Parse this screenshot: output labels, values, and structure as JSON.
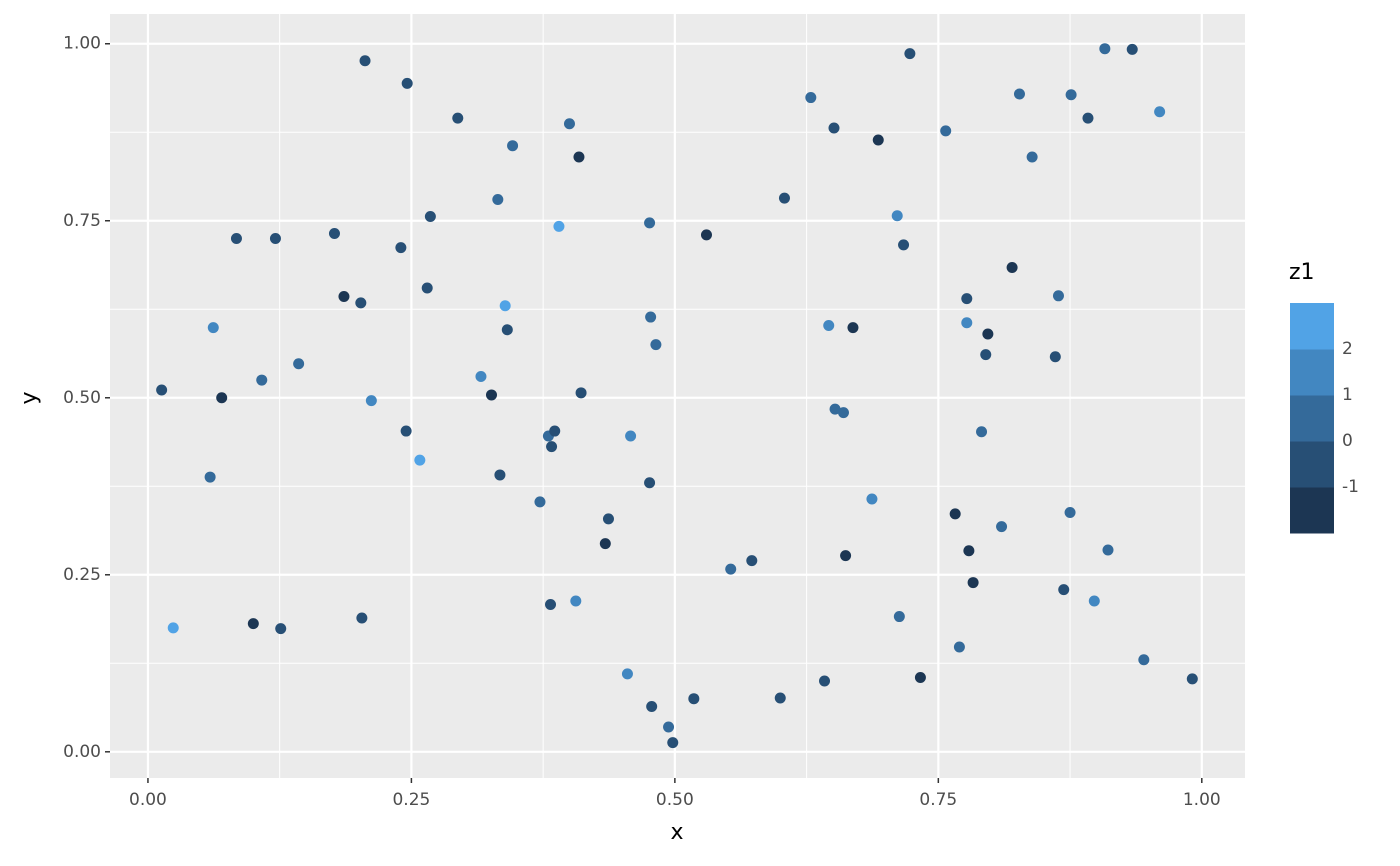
{
  "chart_data": {
    "type": "scatter",
    "x_label": "x",
    "y_label": "y",
    "xlim": [
      -0.036,
      1.041
    ],
    "ylim": [
      -0.037,
      1.042
    ],
    "xticks": [
      {
        "value": 0,
        "label": "0.00"
      },
      {
        "value": 0.25,
        "label": "0.25"
      },
      {
        "value": 0.5,
        "label": "0.50"
      },
      {
        "value": 0.75,
        "label": "0.75"
      },
      {
        "value": 1,
        "label": "1.00"
      }
    ],
    "yticks": [
      {
        "value": 0,
        "label": "0.00"
      },
      {
        "value": 0.25,
        "label": "0.25"
      },
      {
        "value": 0.5,
        "label": "0.50"
      },
      {
        "value": 0.75,
        "label": "0.75"
      },
      {
        "value": 1,
        "label": "1.00"
      }
    ],
    "grid": true,
    "color_scale": {
      "title": "z1",
      "breaks": [
        -1,
        0,
        1,
        2
      ],
      "colors": [
        "#1c3653",
        "#274f75",
        "#346a9a",
        "#4287c1",
        "#51a3e6"
      ]
    },
    "x": [
      0.013,
      0.024,
      0.059,
      0.062,
      0.07,
      0.084,
      0.1,
      0.108,
      0.121,
      0.126,
      0.143,
      0.177,
      0.186,
      0.202,
      0.203,
      0.206,
      0.212,
      0.24,
      0.245,
      0.246,
      0.258,
      0.265,
      0.268,
      0.294,
      0.316,
      0.326,
      0.332,
      0.334,
      0.339,
      0.341,
      0.346,
      0.372,
      0.38,
      0.382,
      0.383,
      0.386,
      0.39,
      0.4,
      0.406,
      0.409,
      0.411,
      0.437,
      0.434,
      0.455,
      0.458,
      0.476,
      0.476,
      0.477,
      0.478,
      0.482,
      0.494,
      0.498,
      0.518,
      0.53,
      0.553,
      0.573,
      0.6,
      0.604,
      0.629,
      0.642,
      0.646,
      0.651,
      0.652,
      0.66,
      0.662,
      0.669,
      0.687,
      0.693,
      0.711,
      0.713,
      0.717,
      0.723,
      0.733,
      0.757,
      0.766,
      0.77,
      0.777,
      0.777,
      0.779,
      0.783,
      0.791,
      0.795,
      0.797,
      0.81,
      0.82,
      0.827,
      0.839,
      0.861,
      0.864,
      0.869,
      0.875,
      0.876,
      0.892,
      0.898,
      0.908,
      0.911,
      0.934,
      0.945,
      0.96,
      0.991
    ],
    "y": [
      0.511,
      0.175,
      0.388,
      0.599,
      0.5,
      0.725,
      0.181,
      0.525,
      0.725,
      0.174,
      0.548,
      0.732,
      0.643,
      0.634,
      0.189,
      0.976,
      0.496,
      0.712,
      0.453,
      0.944,
      0.412,
      0.655,
      0.756,
      0.895,
      0.53,
      0.504,
      0.78,
      0.391,
      0.63,
      0.596,
      0.856,
      0.353,
      0.446,
      0.208,
      0.431,
      0.453,
      0.742,
      0.887,
      0.213,
      0.84,
      0.507,
      0.329,
      0.294,
      0.11,
      0.446,
      0.747,
      0.38,
      0.614,
      0.064,
      0.575,
      0.035,
      0.013,
      0.075,
      0.73,
      0.258,
      0.27,
      0.076,
      0.782,
      0.924,
      0.1,
      0.602,
      0.881,
      0.484,
      0.479,
      0.277,
      0.599,
      0.357,
      0.864,
      0.757,
      0.191,
      0.716,
      0.986,
      0.105,
      0.877,
      0.336,
      0.148,
      0.606,
      0.64,
      0.284,
      0.239,
      0.452,
      0.561,
      0.59,
      0.318,
      0.684,
      0.929,
      0.84,
      0.558,
      0.644,
      0.229,
      0.338,
      0.928,
      0.895,
      0.213,
      0.993,
      0.285,
      0.992,
      0.13,
      0.904,
      0.103
    ],
    "z": [
      -0.5,
      2.5,
      0.5,
      1.5,
      -1.5,
      -0.5,
      -1.5,
      0.5,
      -0.5,
      -0.5,
      0.5,
      -0.5,
      -1.5,
      -0.5,
      -0.5,
      -0.5,
      1.5,
      -0.5,
      -0.5,
      -0.5,
      2.5,
      -0.5,
      -0.5,
      -0.5,
      1.5,
      -1.5,
      0.5,
      -0.5,
      2.5,
      -0.5,
      0.5,
      0.5,
      0.5,
      -0.5,
      -0.5,
      -0.5,
      2.5,
      0.5,
      1.5,
      -1.5,
      -0.5,
      -0.5,
      -1.5,
      1.5,
      1.5,
      0.5,
      -0.5,
      0.5,
      -0.5,
      0.5,
      0.5,
      -0.5,
      -0.5,
      -1.5,
      0.5,
      -0.5,
      -0.5,
      -0.5,
      0.5,
      -0.5,
      1.5,
      -0.5,
      0.5,
      0.5,
      -1.5,
      -1.5,
      1.5,
      -1.5,
      1.5,
      0.5,
      -0.5,
      -0.5,
      -1.5,
      0.5,
      -1.5,
      0.5,
      1.5,
      -0.5,
      -1.5,
      -1.5,
      0.5,
      -0.5,
      -1.5,
      0.5,
      -1.5,
      0.5,
      0.5,
      -0.5,
      0.5,
      -0.5,
      0.5,
      0.5,
      -0.5,
      1.5,
      0.5,
      0.5,
      -0.5,
      0.5,
      1.5,
      -0.5
    ]
  }
}
